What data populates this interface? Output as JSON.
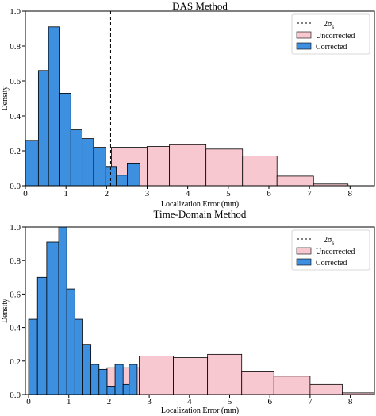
{
  "chart_data": [
    {
      "type": "histogram",
      "title": "DAS Method",
      "xlabel": "Localization Error (mm)",
      "ylabel": "Density",
      "xlim": [
        0,
        8.6
      ],
      "ylim": [
        0,
        1.0
      ],
      "xticks": [
        "0",
        "1",
        "2",
        "3",
        "4",
        "5",
        "6",
        "7",
        "8"
      ],
      "yticks": [
        "0.0",
        "0.2",
        "0.4",
        "0.6",
        "0.8",
        "1.0"
      ],
      "legend_position": "top-right",
      "vline": {
        "x": 2.1,
        "label": "2σ",
        "label_subscript": "s",
        "style": "dashed"
      },
      "series": [
        {
          "name": "Uncorrected",
          "color": "#f8c8d0",
          "bins": [
            {
              "x0": 1.25,
              "x1": 2.12,
              "y": 0.11
            },
            {
              "x0": 2.12,
              "x1": 3.0,
              "y": 0.22
            },
            {
              "x0": 3.0,
              "x1": 3.55,
              "y": 0.225
            },
            {
              "x0": 3.55,
              "x1": 4.45,
              "y": 0.235
            },
            {
              "x0": 4.45,
              "x1": 5.35,
              "y": 0.21
            },
            {
              "x0": 5.35,
              "x1": 6.2,
              "y": 0.17
            },
            {
              "x0": 6.2,
              "x1": 7.1,
              "y": 0.055
            },
            {
              "x0": 7.1,
              "x1": 7.95,
              "y": 0.01
            }
          ]
        },
        {
          "name": "Corrected",
          "color": "#3d8fe0",
          "bins": [
            {
              "x0": 0.0,
              "x1": 0.32,
              "y": 0.26
            },
            {
              "x0": 0.32,
              "x1": 0.57,
              "y": 0.66
            },
            {
              "x0": 0.57,
              "x1": 0.85,
              "y": 0.91
            },
            {
              "x0": 0.85,
              "x1": 1.12,
              "y": 0.53
            },
            {
              "x0": 1.12,
              "x1": 1.4,
              "y": 0.32
            },
            {
              "x0": 1.4,
              "x1": 1.68,
              "y": 0.27
            },
            {
              "x0": 1.68,
              "x1": 1.98,
              "y": 0.22
            },
            {
              "x0": 1.98,
              "x1": 2.24,
              "y": 0.11
            },
            {
              "x0": 2.24,
              "x1": 2.51,
              "y": 0.06
            },
            {
              "x0": 2.51,
              "x1": 2.82,
              "y": 0.13
            }
          ]
        }
      ]
    },
    {
      "type": "histogram",
      "title": "Time-Domain Method",
      "xlabel": "Localization Error (mm)",
      "ylabel": "Density",
      "xlim": [
        -0.08,
        8.6
      ],
      "ylim": [
        0,
        1.0
      ],
      "xticks": [
        "0",
        "1",
        "2",
        "3",
        "4",
        "5",
        "6",
        "7",
        "8"
      ],
      "yticks": [
        "0.0",
        "0.2",
        "0.4",
        "0.6",
        "0.8",
        "1.0"
      ],
      "legend_position": "top-right",
      "vline": {
        "x": 2.1,
        "label": "2σ",
        "label_subscript": "s",
        "style": "dashed"
      },
      "series": [
        {
          "name": "Uncorrected",
          "color": "#f8c8d0",
          "bins": [
            {
              "x0": 0.9,
              "x1": 1.95,
              "y": 0.05
            },
            {
              "x0": 1.95,
              "x1": 2.75,
              "y": 0.16
            },
            {
              "x0": 2.75,
              "x1": 3.6,
              "y": 0.23
            },
            {
              "x0": 3.6,
              "x1": 4.45,
              "y": 0.22
            },
            {
              "x0": 4.45,
              "x1": 5.3,
              "y": 0.24
            },
            {
              "x0": 5.3,
              "x1": 6.1,
              "y": 0.14
            },
            {
              "x0": 6.1,
              "x1": 7.0,
              "y": 0.11
            },
            {
              "x0": 7.0,
              "x1": 7.8,
              "y": 0.06
            },
            {
              "x0": 7.8,
              "x1": 8.6,
              "y": 0.01
            }
          ]
        },
        {
          "name": "Corrected",
          "color": "#3d8fe0",
          "bins": [
            {
              "x0": 0.0,
              "x1": 0.22,
              "y": 0.45
            },
            {
              "x0": 0.22,
              "x1": 0.45,
              "y": 0.7
            },
            {
              "x0": 0.45,
              "x1": 0.75,
              "y": 0.91
            },
            {
              "x0": 0.75,
              "x1": 0.95,
              "y": 1.0
            },
            {
              "x0": 0.95,
              "x1": 1.15,
              "y": 0.63
            },
            {
              "x0": 1.15,
              "x1": 1.35,
              "y": 0.45
            },
            {
              "x0": 1.35,
              "x1": 1.55,
              "y": 0.3
            },
            {
              "x0": 1.55,
              "x1": 1.75,
              "y": 0.18
            },
            {
              "x0": 1.75,
              "x1": 1.95,
              "y": 0.15
            },
            {
              "x0": 1.95,
              "x1": 2.15,
              "y": 0.05
            },
            {
              "x0": 2.15,
              "x1": 2.35,
              "y": 0.18
            },
            {
              "x0": 2.35,
              "x1": 2.5,
              "y": 0.06
            },
            {
              "x0": 2.5,
              "x1": 2.7,
              "y": 0.18
            }
          ]
        }
      ]
    }
  ]
}
